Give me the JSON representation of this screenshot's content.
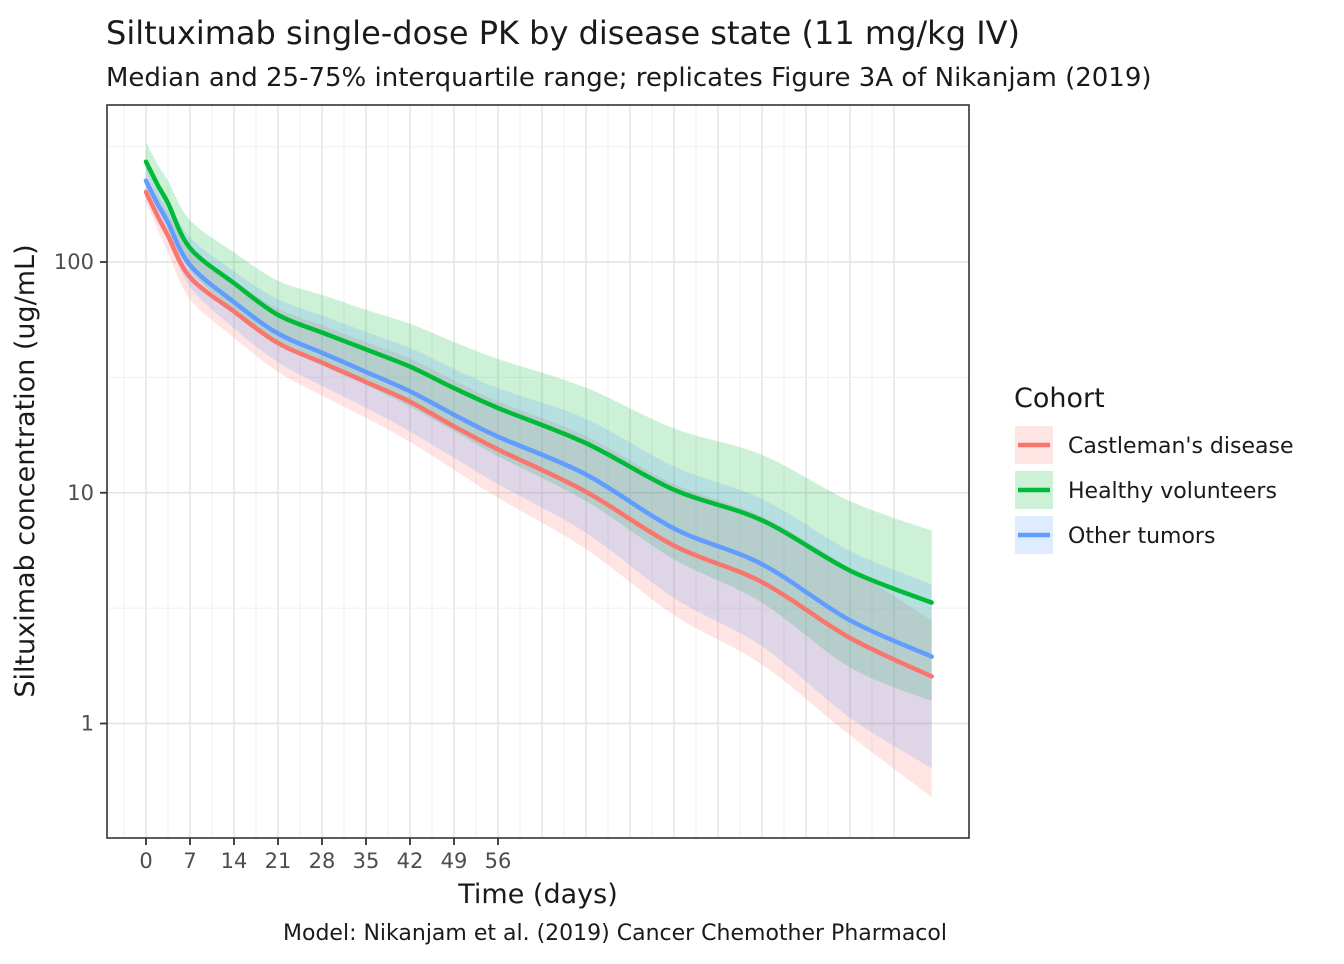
{
  "chart_data": {
    "type": "line",
    "title": "Siltuximab single-dose PK by disease state (11 mg/kg IV)",
    "subtitle": "Median and 25-75% interquartile range; replicates Figure 3A of Nikanjam (2019)",
    "caption": "Model: Nikanjam et al. (2019) Cancer Chemother Pharmacol",
    "xlabel": "Time (days)",
    "ylabel": "Siltuximab concentration (ug/mL)",
    "legend_title": "Cohort",
    "legend_position": "right",
    "grid": true,
    "band": "25-75% interquartile range",
    "x_axis": {
      "ticks": [
        0,
        7,
        14,
        21,
        28,
        35,
        42,
        49,
        56
      ],
      "range_days": [
        0,
        125
      ]
    },
    "y_axis": {
      "scale": "log10",
      "ticks": [
        100,
        10,
        1
      ],
      "tick_labels": [
        "100",
        "10",
        "1"
      ],
      "range": [
        0.32,
        480
      ]
    },
    "x_days": [
      0,
      1,
      2,
      3.5,
      7,
      14,
      21,
      28,
      35,
      42,
      49,
      56,
      70,
      84,
      98,
      112,
      125
    ],
    "series": [
      {
        "name": "Castleman's disease",
        "color": "#F8766D",
        "fill_opacity": 0.2,
        "median": [
          201,
          176,
          155,
          130,
          86,
          61,
          44.5,
          36.7,
          30.2,
          24.8,
          19.4,
          15.4,
          10.1,
          5.9,
          4.1,
          2.35,
          1.6
        ],
        "q25": [
          181,
          157,
          135,
          110,
          69,
          47,
          33.4,
          26.4,
          21.1,
          16.6,
          12.6,
          9.5,
          5.7,
          2.95,
          1.8,
          0.89,
          0.48
        ],
        "q75": [
          241,
          215,
          191,
          163,
          114,
          83,
          62.7,
          53.2,
          45.0,
          38.2,
          30.7,
          24.9,
          17.6,
          10.9,
          7.9,
          4.7,
          2.8
        ]
      },
      {
        "name": "Healthy volunteers",
        "color": "#00BA38",
        "fill_opacity": 0.2,
        "median": [
          272,
          240,
          212,
          180,
          115,
          81,
          59,
          49.5,
          41.8,
          35.2,
          28.4,
          23.3,
          16.4,
          10.3,
          7.6,
          4.6,
          3.34
        ],
        "q25": [
          245,
          214,
          184,
          153,
          92,
          62.4,
          44.3,
          35.6,
          29.3,
          23.6,
          18.5,
          14.4,
          9.2,
          5.15,
          3.34,
          1.75,
          1.25
        ],
        "q75": [
          330,
          293,
          261,
          225,
          152,
          110,
          83,
          72,
          62,
          54,
          45,
          38,
          28.5,
          19,
          14.6,
          9.2,
          6.85
        ]
      },
      {
        "name": "Other tumors",
        "color": "#619CFF",
        "fill_opacity": 0.2,
        "median": [
          225,
          198,
          175,
          148,
          97,
          67,
          49,
          40.4,
          33.4,
          27.5,
          21.8,
          17.5,
          12.0,
          7.0,
          4.9,
          2.8,
          1.95
        ],
        "q25": [
          203,
          176,
          152,
          126,
          78,
          51.6,
          36.8,
          29.1,
          23.4,
          18.4,
          14.2,
          10.9,
          6.7,
          3.5,
          2.16,
          1.06,
          0.64
        ],
        "q75": [
          270,
          242,
          215,
          185,
          128,
          91,
          69,
          58.6,
          49.8,
          42.4,
          34.4,
          28.4,
          20.9,
          13.0,
          9.4,
          5.6,
          4.0
        ]
      }
    ]
  }
}
